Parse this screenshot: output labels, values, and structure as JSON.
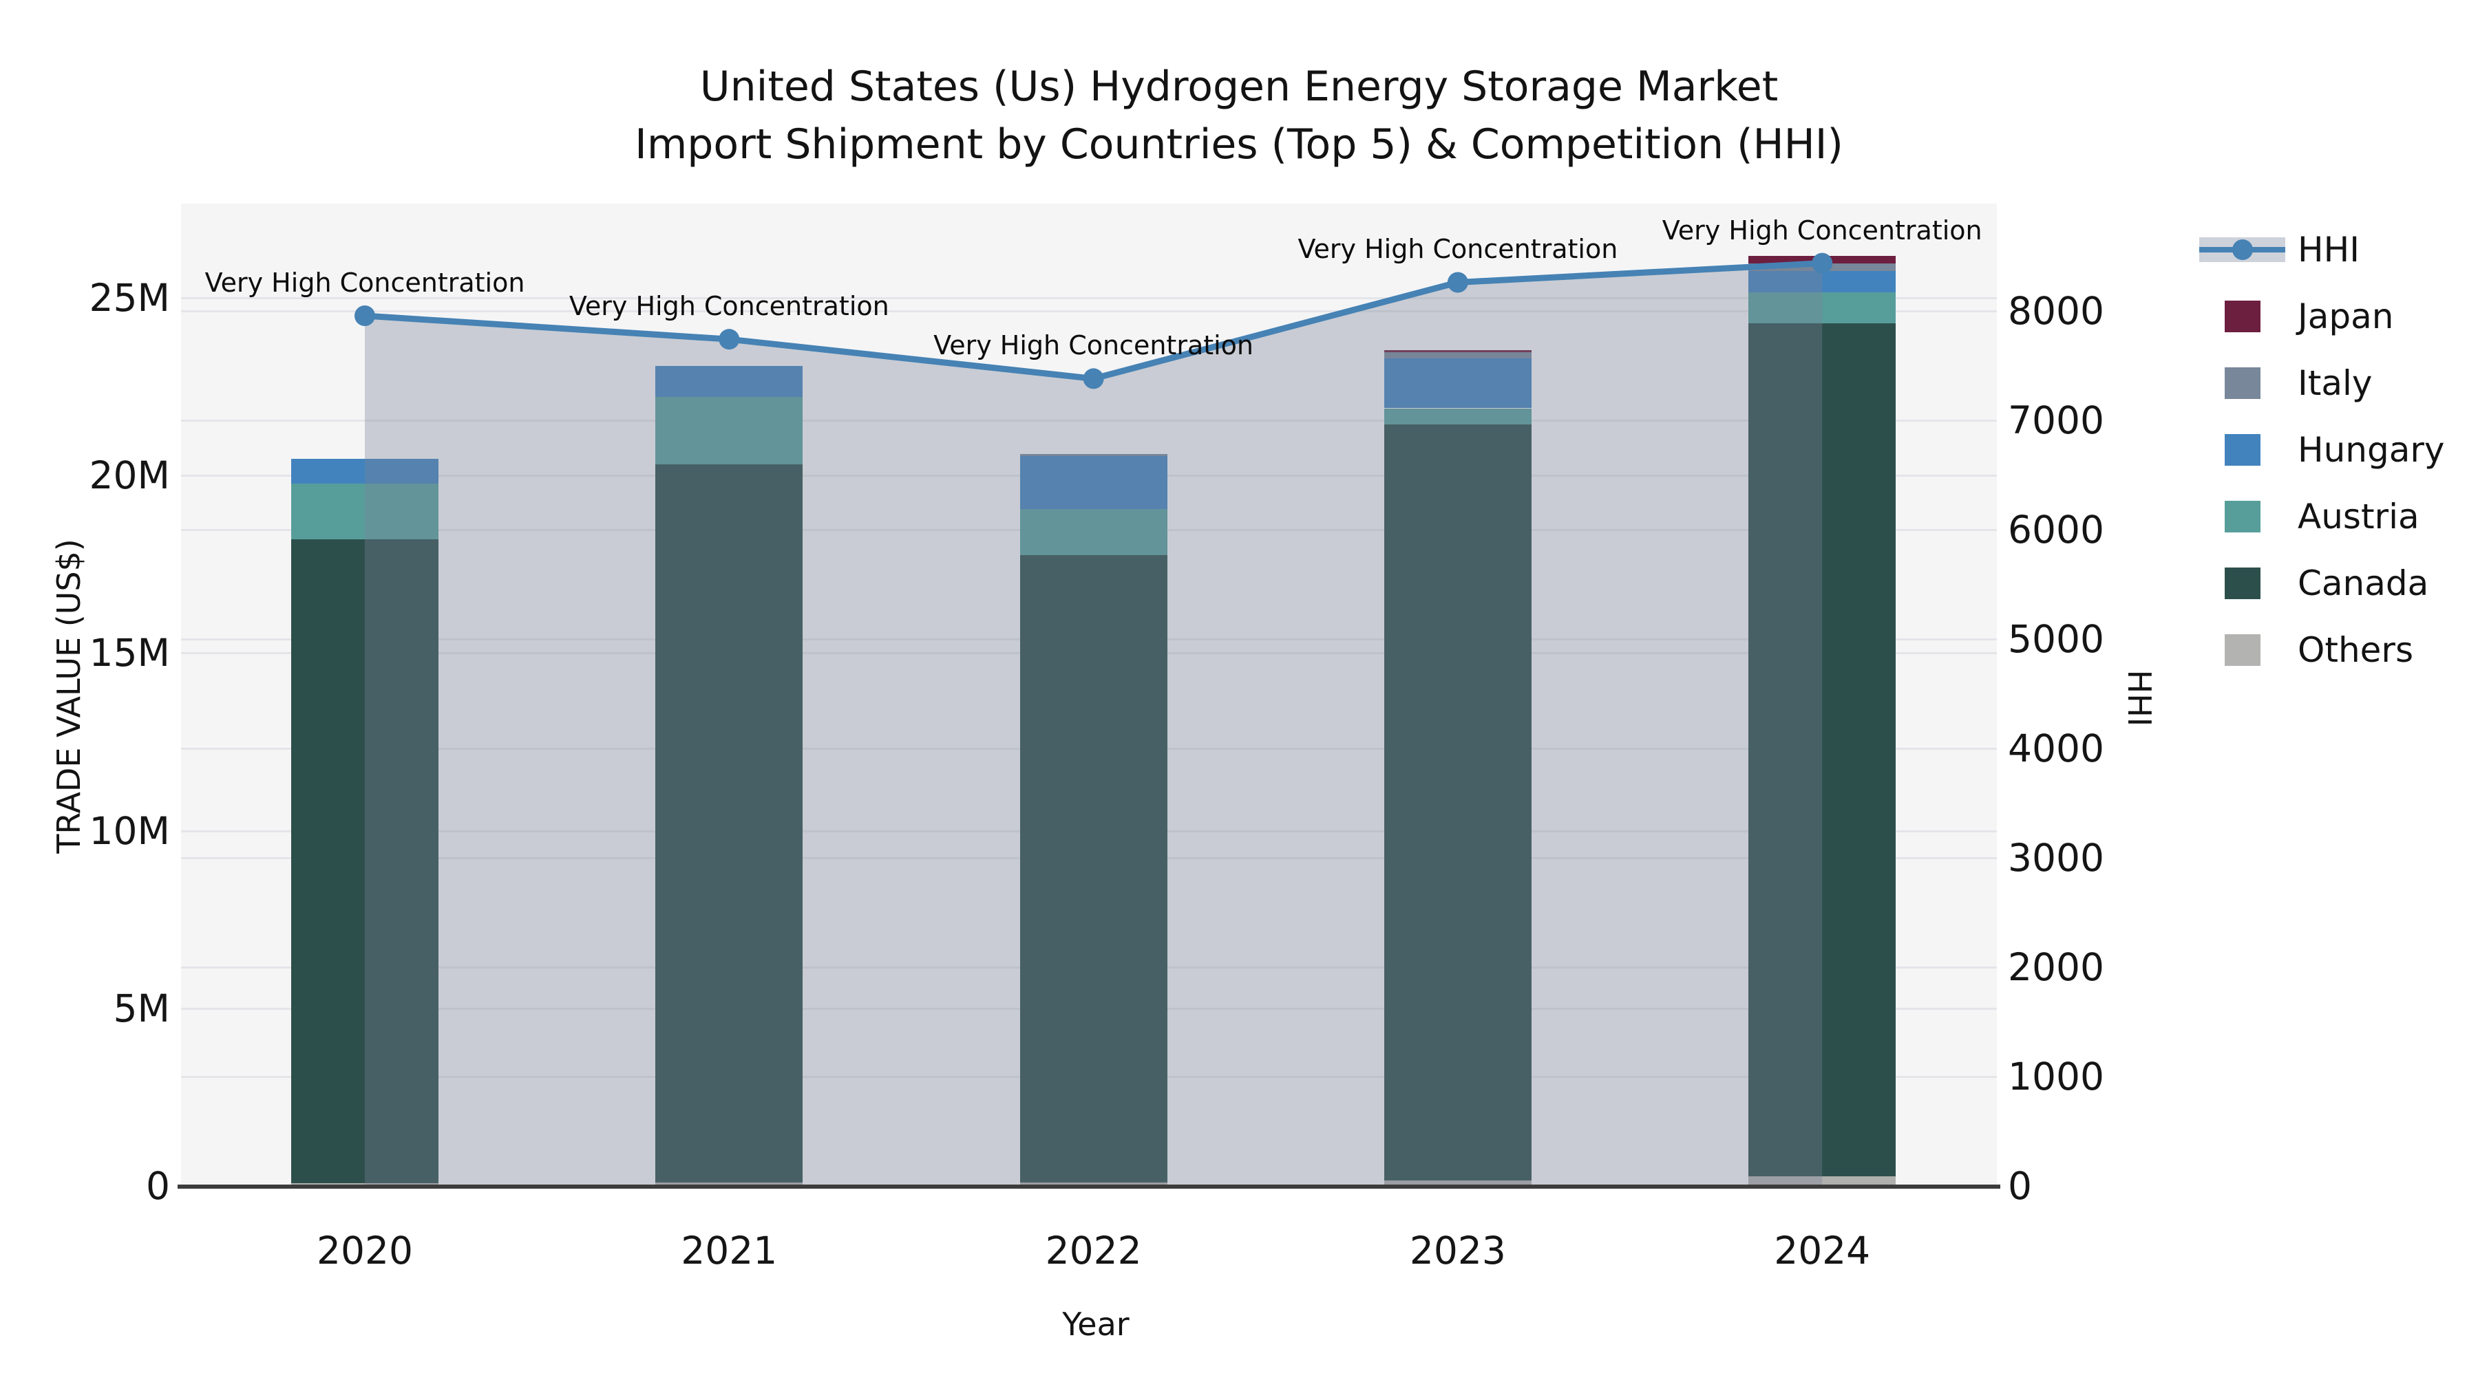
{
  "title": {
    "line1": "United States (Us) Hydrogen Energy Storage Market",
    "line2": "Import Shipment by Countries (Top 5) & Competition (HHI)"
  },
  "axes": {
    "left": {
      "title": "TRADE VALUE (US$)",
      "ticks": [
        "0",
        "5M",
        "10M",
        "15M",
        "20M",
        "25M"
      ],
      "tick_values_musd": [
        0,
        5,
        10,
        15,
        20,
        25
      ],
      "range_musd": [
        0,
        27.65
      ]
    },
    "right": {
      "title": "HHI",
      "ticks": [
        "0",
        "1000",
        "2000",
        "3000",
        "4000",
        "5000",
        "6000",
        "7000",
        "8000"
      ],
      "tick_values": [
        0,
        1000,
        2000,
        3000,
        4000,
        5000,
        6000,
        7000,
        8000
      ],
      "range": [
        0,
        8980
      ]
    },
    "x": {
      "title": "Year",
      "categories": [
        "2020",
        "2021",
        "2022",
        "2023",
        "2024"
      ]
    }
  },
  "legend": {
    "items": [
      {
        "label": "HHI",
        "type": "line",
        "color": "#4682b4"
      },
      {
        "label": "Japan",
        "type": "swatch",
        "color": "#6d1f3f"
      },
      {
        "label": "Italy",
        "type": "swatch",
        "color": "#78879a"
      },
      {
        "label": "Hungary",
        "type": "swatch",
        "color": "#4283be"
      },
      {
        "label": "Austria",
        "type": "swatch",
        "color": "#579e9b"
      },
      {
        "label": "Canada",
        "type": "swatch",
        "color": "#2d4f4c"
      },
      {
        "label": "Others",
        "type": "swatch",
        "color": "#b3b3b1"
      }
    ]
  },
  "chart_data": [
    {
      "type": "bar",
      "stacked": true,
      "title": "Import trade value by country (stacked, US$ millions)",
      "categories": [
        "2020",
        "2021",
        "2022",
        "2023",
        "2024"
      ],
      "series": [
        {
          "name": "Others",
          "color": "#b0b0ae",
          "values_musd": [
            0.08,
            0.1,
            0.1,
            0.15,
            0.28
          ]
        },
        {
          "name": "Canada",
          "color": "#2d4f4c",
          "values_musd": [
            18.12,
            20.21,
            17.66,
            21.28,
            24.01
          ]
        },
        {
          "name": "Austria",
          "color": "#579e9b",
          "values_musd": [
            1.57,
            1.9,
            1.3,
            0.46,
            0.87
          ]
        },
        {
          "name": "Hungary",
          "color": "#4283be",
          "values_musd": [
            0.7,
            0.87,
            1.49,
            1.4,
            0.59
          ]
        },
        {
          "name": "Italy",
          "color": "#78879a",
          "values_musd": [
            0.0,
            0.0,
            0.06,
            0.18,
            0.22
          ]
        },
        {
          "name": "Japan",
          "color": "#6d1f3f",
          "values_musd": [
            0.0,
            0.0,
            0.0,
            0.05,
            0.21
          ]
        }
      ],
      "totals_musd": [
        20.47,
        23.08,
        20.61,
        23.52,
        26.18
      ],
      "ylabel": "TRADE VALUE (US$)",
      "xlabel": "Year",
      "ylim_musd": [
        0,
        27.65
      ],
      "grid": true
    },
    {
      "type": "line",
      "name": "HHI",
      "color": "#4682b4",
      "area_fill": "rgba(119,130,148,0.35)",
      "categories": [
        "2020",
        "2021",
        "2022",
        "2023",
        "2024"
      ],
      "values": [
        7955,
        7740,
        7380,
        8260,
        8435
      ],
      "annotations": [
        "Very High Concentration",
        "Very High Concentration",
        "Very High Concentration",
        "Very High Concentration",
        "Very High Concentration"
      ],
      "ylim": [
        0,
        8980
      ],
      "legend_position": "right"
    }
  ]
}
